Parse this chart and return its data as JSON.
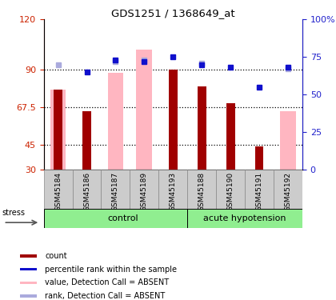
{
  "title": "GDS1251 / 1368649_at",
  "samples": [
    "GSM45184",
    "GSM45186",
    "GSM45187",
    "GSM45189",
    "GSM45193",
    "GSM45188",
    "GSM45190",
    "GSM45191",
    "GSM45192"
  ],
  "red_bars": [
    78,
    65,
    null,
    null,
    90,
    80,
    70,
    44,
    null
  ],
  "pink_bars": [
    78,
    null,
    88,
    102,
    null,
    null,
    null,
    null,
    65
  ],
  "blue_squares_pct": [
    null,
    65,
    73,
    72,
    75,
    70,
    68,
    55,
    68
  ],
  "lavender_squares_pct": [
    70,
    null,
    72,
    73,
    null,
    71,
    null,
    null,
    67
  ],
  "ylim_left": [
    30,
    120
  ],
  "ylim_right": [
    0,
    100
  ],
  "yticks_left": [
    30,
    45,
    67.5,
    90,
    120
  ],
  "ytick_labels_left": [
    "30",
    "45",
    "67.5",
    "90",
    "120"
  ],
  "yticks_right": [
    0,
    25,
    50,
    75,
    100
  ],
  "ytick_labels_right": [
    "0",
    "25",
    "50",
    "75",
    "100%"
  ],
  "hlines": [
    45,
    67.5,
    90
  ],
  "red_color": "#A00000",
  "pink_color": "#FFB6C1",
  "blue_color": "#1010CC",
  "lavender_color": "#AAAADD",
  "axis_left_color": "#CC2200",
  "axis_right_color": "#2222CC",
  "group_boundary": 5,
  "legend_items": [
    {
      "label": "count",
      "color": "#A00000"
    },
    {
      "label": "percentile rank within the sample",
      "color": "#1010CC"
    },
    {
      "label": "value, Detection Call = ABSENT",
      "color": "#FFB6C1"
    },
    {
      "label": "rank, Detection Call = ABSENT",
      "color": "#AAAADD"
    }
  ]
}
